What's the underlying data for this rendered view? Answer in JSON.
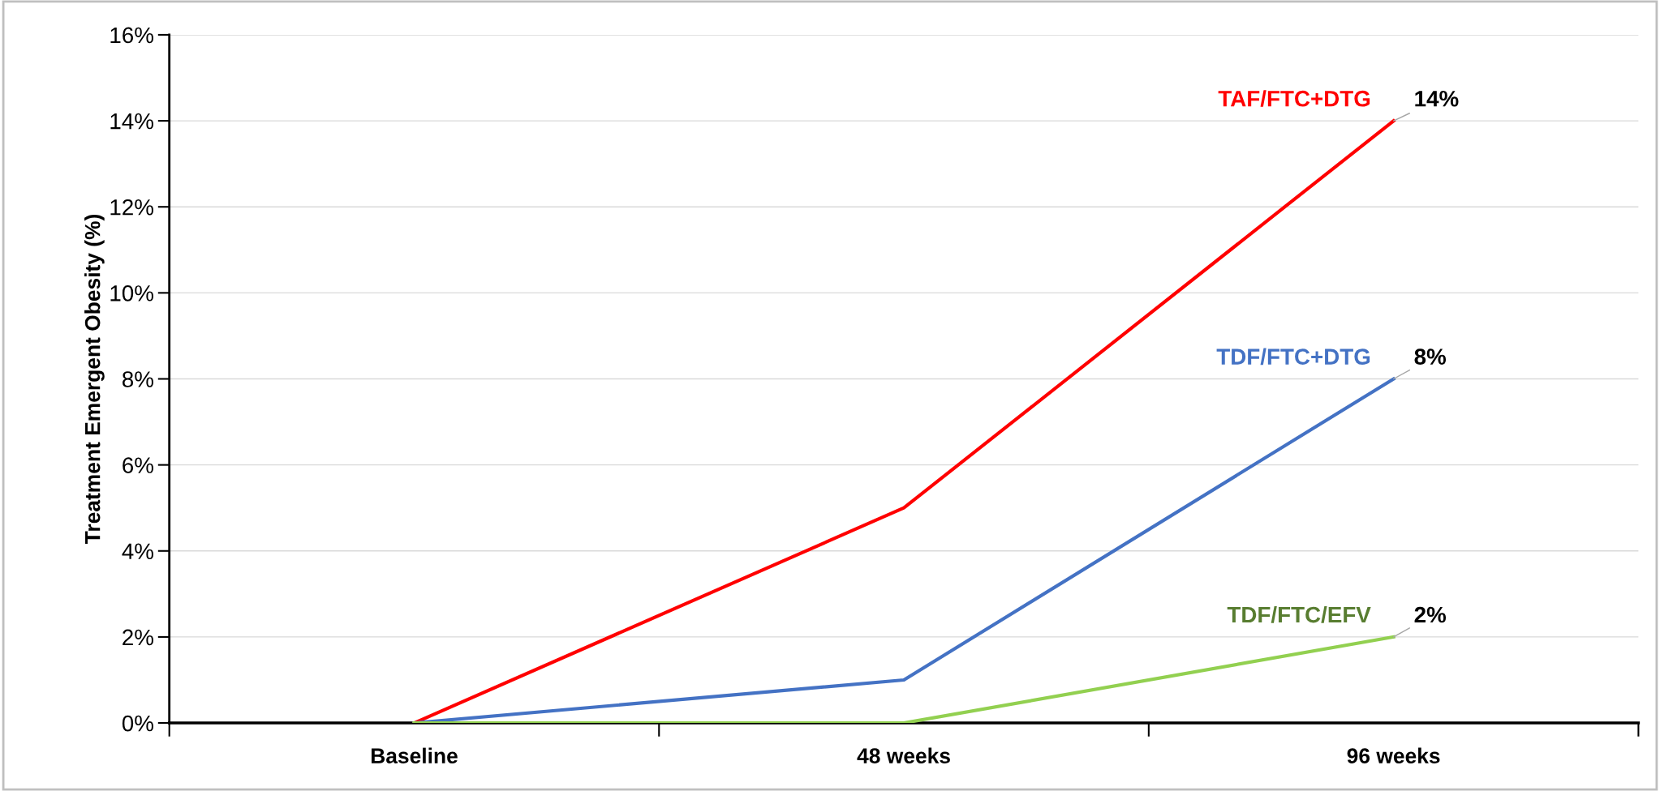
{
  "chart_data": {
    "type": "line",
    "ylabel": "Treatment Emergent Obesity (%)",
    "categories": [
      "Baseline",
      "48 weeks",
      "96 weeks"
    ],
    "series": [
      {
        "name": "TAF/FTC+DTG",
        "color": "#ff0000",
        "values": [
          0,
          5,
          14
        ],
        "value_labels": [
          null,
          null,
          "14%"
        ]
      },
      {
        "name": "TDF/FTC+DTG",
        "color": "#4472c4",
        "values": [
          0,
          1,
          8
        ],
        "value_labels": [
          null,
          null,
          "8%"
        ]
      },
      {
        "name": "TDF/FTC/EFV",
        "color": "#92d050",
        "values": [
          0,
          0,
          2
        ],
        "value_labels": [
          null,
          null,
          "2%"
        ]
      }
    ],
    "ylim": [
      0,
      16
    ],
    "yticks": [
      {
        "value": 0,
        "label": "0%"
      },
      {
        "value": 2,
        "label": "2%"
      },
      {
        "value": 4,
        "label": "4%"
      },
      {
        "value": 6,
        "label": "6%"
      },
      {
        "value": 8,
        "label": "8%"
      },
      {
        "value": 10,
        "label": "10%"
      },
      {
        "value": 12,
        "label": "12%"
      },
      {
        "value": 14,
        "label": "14%"
      },
      {
        "value": 16,
        "label": "16%"
      }
    ],
    "grid": "y",
    "legend": false,
    "marker": "none",
    "line_style": "solid"
  }
}
